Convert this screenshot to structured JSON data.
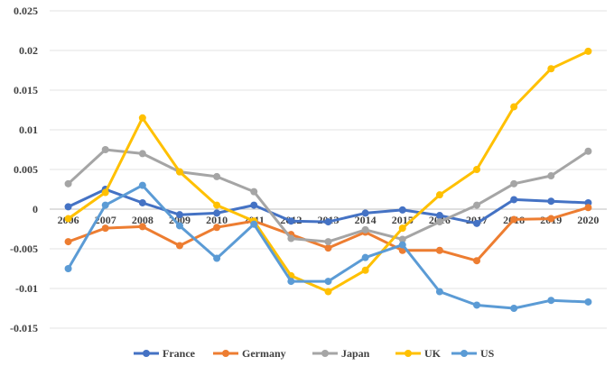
{
  "chart_data": {
    "type": "line",
    "title": "",
    "xlabel": "",
    "ylabel": "",
    "x": [
      "2006",
      "2007",
      "2008",
      "2009",
      "2010",
      "2011",
      "2012",
      "2013",
      "2014",
      "2015",
      "2016",
      "2017",
      "2018",
      "2019",
      "2020"
    ],
    "ylim": [
      -0.015,
      0.025
    ],
    "yticks": [
      "0.025",
      "0.02",
      "0.015",
      "0.01",
      "0.005",
      "0",
      "-0.005",
      "-0.01",
      "-0.015"
    ],
    "ytick_values": [
      0.025,
      0.02,
      0.015,
      0.01,
      0.005,
      0,
      -0.005,
      -0.01,
      -0.015
    ],
    "grid": "horizontal",
    "legend_position": "bottom",
    "series": [
      {
        "name": "France",
        "color": "#4472C4",
        "values": [
          0.0003,
          0.0025,
          0.0008,
          -0.0007,
          -0.0005,
          0.0005,
          -0.0015,
          -0.0016,
          -0.0005,
          -0.0001,
          -0.0008,
          -0.0018,
          0.0012,
          0.001,
          0.0008
        ]
      },
      {
        "name": "Germany",
        "color": "#ED7D31",
        "values": [
          -0.0041,
          -0.0024,
          -0.0022,
          -0.0046,
          -0.0023,
          -0.0015,
          -0.0032,
          -0.0049,
          -0.0029,
          -0.0052,
          -0.0052,
          -0.0065,
          -0.0013,
          -0.0012,
          0.0002
        ]
      },
      {
        "name": "Japan",
        "color": "#A5A5A5",
        "values": [
          0.0032,
          0.0075,
          0.007,
          0.0047,
          0.0041,
          0.0022,
          -0.0037,
          -0.0041,
          -0.0026,
          -0.0038,
          -0.0016,
          0.0005,
          0.0032,
          0.0042,
          0.0073
        ]
      },
      {
        "name": "UK",
        "color": "#FFC000",
        "values": [
          -0.0012,
          0.0021,
          0.0115,
          0.0047,
          0.0005,
          -0.0015,
          -0.0084,
          -0.0104,
          -0.0077,
          -0.0024,
          0.0018,
          0.005,
          0.0129,
          0.0177,
          0.0199
        ]
      },
      {
        "name": "US",
        "color": "#5B9BD5",
        "values": [
          -0.0075,
          0.0005,
          0.003,
          -0.0021,
          -0.0062,
          -0.0019,
          -0.0091,
          -0.0091,
          -0.0061,
          -0.0045,
          -0.0104,
          -0.0121,
          -0.0125,
          -0.0115,
          -0.0117
        ]
      }
    ]
  }
}
